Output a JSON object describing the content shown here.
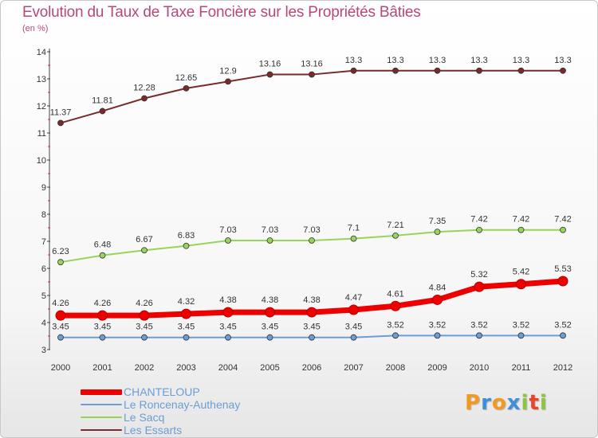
{
  "header": {
    "title": "Evolution du Taux de Taxe Foncière sur les Propriétés Bâties",
    "subtitle": "(en %)"
  },
  "chart_data": {
    "type": "line",
    "title": "Evolution du Taux de Taxe Foncière sur les Propriétés Bâties",
    "ylabel": "(en %)",
    "xlabel": "",
    "ylim": [
      3,
      14
    ],
    "yticks": [
      "3",
      "4",
      "5",
      "6",
      "7",
      "8",
      "9",
      "10",
      "11",
      "12",
      "13",
      "14"
    ],
    "categories": [
      "2000",
      "2001",
      "2002",
      "2003",
      "2004",
      "2005",
      "2006",
      "2007",
      "2008",
      "2009",
      "2010",
      "2011",
      "2012"
    ],
    "series": [
      {
        "name": "Les Essarts",
        "color": "#7a2a2a",
        "values": [
          11.37,
          11.81,
          12.28,
          12.65,
          12.9,
          13.16,
          13.16,
          13.3,
          13.3,
          13.3,
          13.3,
          13.3,
          13.3
        ],
        "labels": [
          "11.37",
          "11.81",
          "12.28",
          "12.65",
          "12.9",
          "13.16",
          "13.16",
          "13.3",
          "13.3",
          "13.3",
          "13.3",
          "13.3",
          "13.3"
        ]
      },
      {
        "name": "Le Sacq",
        "color": "#96d45a",
        "values": [
          6.23,
          6.48,
          6.67,
          6.83,
          7.03,
          7.03,
          7.03,
          7.1,
          7.21,
          7.35,
          7.42,
          7.42,
          7.42
        ],
        "labels": [
          "6.23",
          "6.48",
          "6.67",
          "6.83",
          "7.03",
          "7.03",
          "7.03",
          "7.1",
          "7.21",
          "7.35",
          "7.42",
          "7.42",
          "7.42"
        ]
      },
      {
        "name": "CHANTELOUP",
        "color": "#ee0000",
        "values": [
          4.26,
          4.26,
          4.26,
          4.32,
          4.38,
          4.38,
          4.38,
          4.47,
          4.61,
          4.84,
          5.32,
          5.42,
          5.53
        ],
        "labels": [
          "4.26",
          "4.26",
          "4.26",
          "4.32",
          "4.38",
          "4.38",
          "4.38",
          "4.47",
          "4.61",
          "4.84",
          "5.32",
          "5.42",
          "5.53"
        ]
      },
      {
        "name": "Le Roncenay-Authenay",
        "color": "#6a9ed4",
        "values": [
          3.45,
          3.45,
          3.45,
          3.45,
          3.45,
          3.45,
          3.45,
          3.45,
          3.52,
          3.52,
          3.52,
          3.52,
          3.52
        ],
        "labels": [
          "3.45",
          "3.45",
          "3.45",
          "3.45",
          "3.45",
          "3.45",
          "3.45",
          "3.45",
          "3.52",
          "3.52",
          "3.52",
          "3.52",
          "3.52"
        ]
      }
    ],
    "legend": [
      {
        "name": "CHANTELOUP",
        "color": "#ee0000",
        "text_color": "#6a9ed4"
      },
      {
        "name": "Le Roncenay-Authenay",
        "color": "#6a9ed4",
        "text_color": "#6a9ed4"
      },
      {
        "name": "Le Sacq",
        "color": "#96d45a",
        "text_color": "#6a9ed4"
      },
      {
        "name": "Les Essarts",
        "color": "#7a2a2a",
        "text_color": "#6a9ed4"
      }
    ]
  },
  "logo": {
    "letters": [
      "P",
      "r",
      "o",
      "x",
      "i",
      "t",
      "i"
    ],
    "colors": [
      "#f39a1e",
      "#3f8fd8",
      "#f39a1e",
      "#3f8fd8",
      "#8cc63f",
      "#e8452c",
      "#8cc63f"
    ]
  }
}
